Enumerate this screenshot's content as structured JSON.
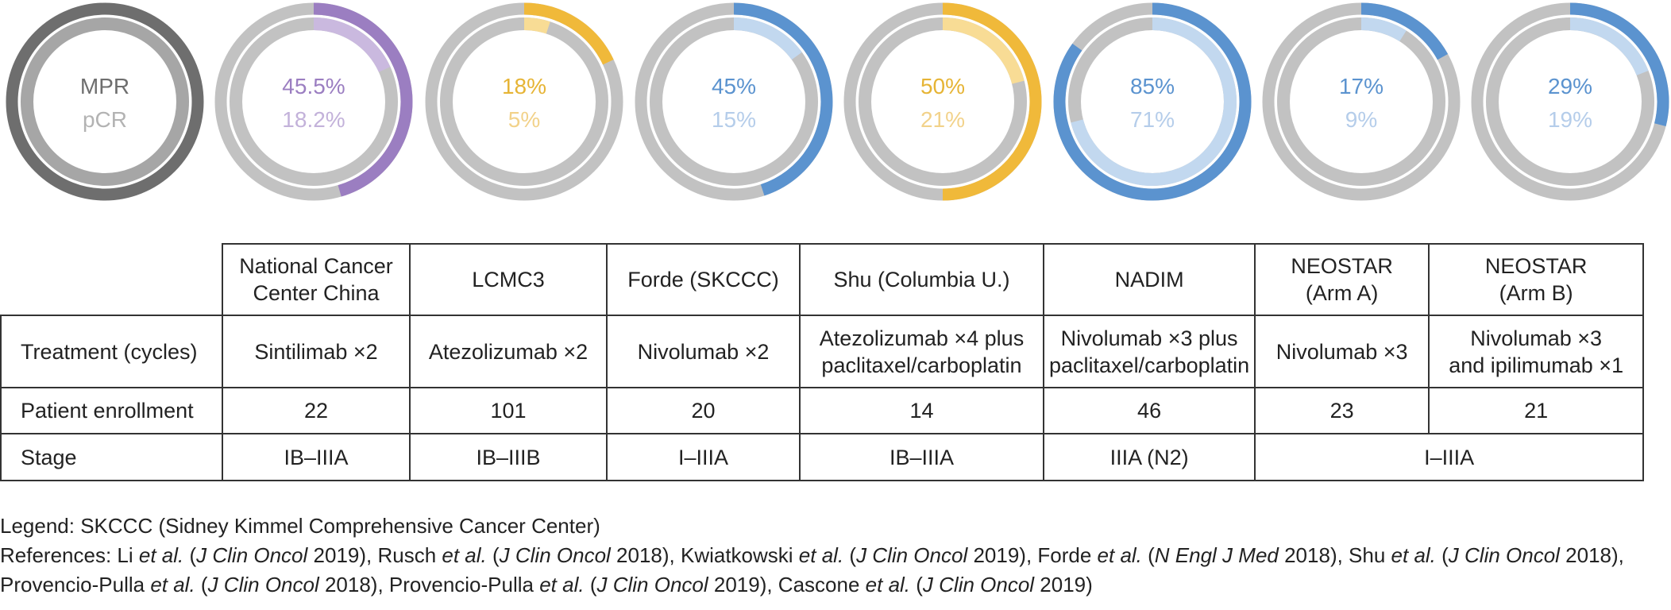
{
  "chart_data": {
    "type": "pie",
    "subtype": "concentric-donut",
    "legend_labels": {
      "outer": "MPR",
      "inner": "pCR"
    },
    "legend_colors": {
      "outer": "#6e6e6e",
      "inner": "#a6a6a6"
    },
    "track_color": "#c2c2c2",
    "studies": [
      {
        "mpr": 45.5,
        "pcr": 18.2,
        "mpr_label": "45.5%",
        "pcr_label": "18.2%",
        "outer_color": "#9b7ec1",
        "inner_color": "#cab9df",
        "outer_text_color": "#9b7ec1",
        "inner_text_color": "#c3b2da"
      },
      {
        "mpr": 18,
        "pcr": 5,
        "mpr_label": "18%",
        "pcr_label": "5%",
        "outer_color": "#f0b93a",
        "inner_color": "#f8dc95",
        "outer_text_color": "#e6b435",
        "inner_text_color": "#f2d28a"
      },
      {
        "mpr": 45,
        "pcr": 15,
        "mpr_label": "45%",
        "pcr_label": "15%",
        "outer_color": "#5b93cf",
        "inner_color": "#c2d8ef",
        "outer_text_color": "#5b93cf",
        "inner_text_color": "#b5cdea"
      },
      {
        "mpr": 50,
        "pcr": 21,
        "mpr_label": "50%",
        "pcr_label": "21%",
        "outer_color": "#f0b93a",
        "inner_color": "#f8dc95",
        "outer_text_color": "#e6b435",
        "inner_text_color": "#f2d28a"
      },
      {
        "mpr": 85,
        "pcr": 71,
        "mpr_label": "85%",
        "pcr_label": "71%",
        "outer_color": "#5b93cf",
        "inner_color": "#c2d8ef",
        "outer_text_color": "#5b93cf",
        "inner_text_color": "#b5cdea"
      },
      {
        "mpr": 17,
        "pcr": 9,
        "mpr_label": "17%",
        "pcr_label": "9%",
        "outer_color": "#5b93cf",
        "inner_color": "#c2d8ef",
        "outer_text_color": "#5b93cf",
        "inner_text_color": "#b5cdea"
      },
      {
        "mpr": 29,
        "pcr": 19,
        "mpr_label": "29%",
        "pcr_label": "19%",
        "outer_color": "#5b93cf",
        "inner_color": "#c2d8ef",
        "outer_text_color": "#5b93cf",
        "inner_text_color": "#b5cdea"
      }
    ]
  },
  "table": {
    "headers": [
      [
        "National Cancer",
        "Center China"
      ],
      [
        "LCMC3"
      ],
      [
        "Forde (SKCCC)"
      ],
      [
        "Shu (Columbia U.)"
      ],
      [
        "NADIM"
      ],
      [
        "NEOSTAR",
        "(Arm A)"
      ],
      [
        "NEOSTAR",
        "(Arm B)"
      ]
    ],
    "treatment": {
      "label": "Treatment (cycles)",
      "cells": [
        [
          "Sintilimab ×2"
        ],
        [
          "Atezolizumab ×2"
        ],
        [
          "Nivolumab ×2"
        ],
        [
          "Atezolizumab ×4 plus",
          "paclitaxel/carboplatin"
        ],
        [
          "Nivolumab ×3 plus",
          "paclitaxel/carboplatin"
        ],
        [
          "Nivolumab ×3"
        ],
        [
          "Nivolumab ×3",
          "and ipilimumab ×1"
        ]
      ]
    },
    "enrollment": {
      "label": "Patient enrollment",
      "cells": [
        "22",
        "101",
        "20",
        "14",
        "46",
        "23",
        "21"
      ]
    },
    "stage": {
      "label": "Stage",
      "cells": [
        "IB–IIIA",
        "IB–IIIB",
        "I–IIIA",
        "IB–IIIA",
        "IIIA (N2)",
        "I–IIIA"
      ]
    }
  },
  "notes": {
    "legend_text": "Legend: SKCCC (Sidney Kimmel Comprehensive Cancer Center)",
    "references": [
      {
        "t": "References: Li "
      },
      {
        "t": "et al.",
        "i": true
      },
      {
        "t": " ("
      },
      {
        "t": "J Clin Oncol",
        "i": true
      },
      {
        "t": " 2019), Rusch "
      },
      {
        "t": "et al.",
        "i": true
      },
      {
        "t": " ("
      },
      {
        "t": "J Clin Oncol",
        "i": true
      },
      {
        "t": " 2018), Kwiatkowski "
      },
      {
        "t": "et al.",
        "i": true
      },
      {
        "t": " ("
      },
      {
        "t": "J Clin Oncol",
        "i": true
      },
      {
        "t": " 2019), Forde "
      },
      {
        "t": "et al.",
        "i": true
      },
      {
        "t": " ("
      },
      {
        "t": "N Engl J Med",
        "i": true
      },
      {
        "t": " 2018), Shu "
      },
      {
        "t": "et al.",
        "i": true
      },
      {
        "t": " ("
      },
      {
        "t": "J Clin Oncol",
        "i": true
      },
      {
        "t": " 2018), Provencio-Pulla "
      },
      {
        "t": "et al.",
        "i": true
      },
      {
        "t": " ("
      },
      {
        "t": "J Clin Oncol",
        "i": true
      },
      {
        "t": " 2018), Provencio-Pulla "
      },
      {
        "t": "et al.",
        "i": true
      },
      {
        "t": " ("
      },
      {
        "t": "J Clin Oncol",
        "i": true
      },
      {
        "t": " 2019), Cascone "
      },
      {
        "t": "et al.",
        "i": true
      },
      {
        "t": " ("
      },
      {
        "t": "J Clin Oncol",
        "i": true
      },
      {
        "t": " 2019)"
      }
    ]
  }
}
